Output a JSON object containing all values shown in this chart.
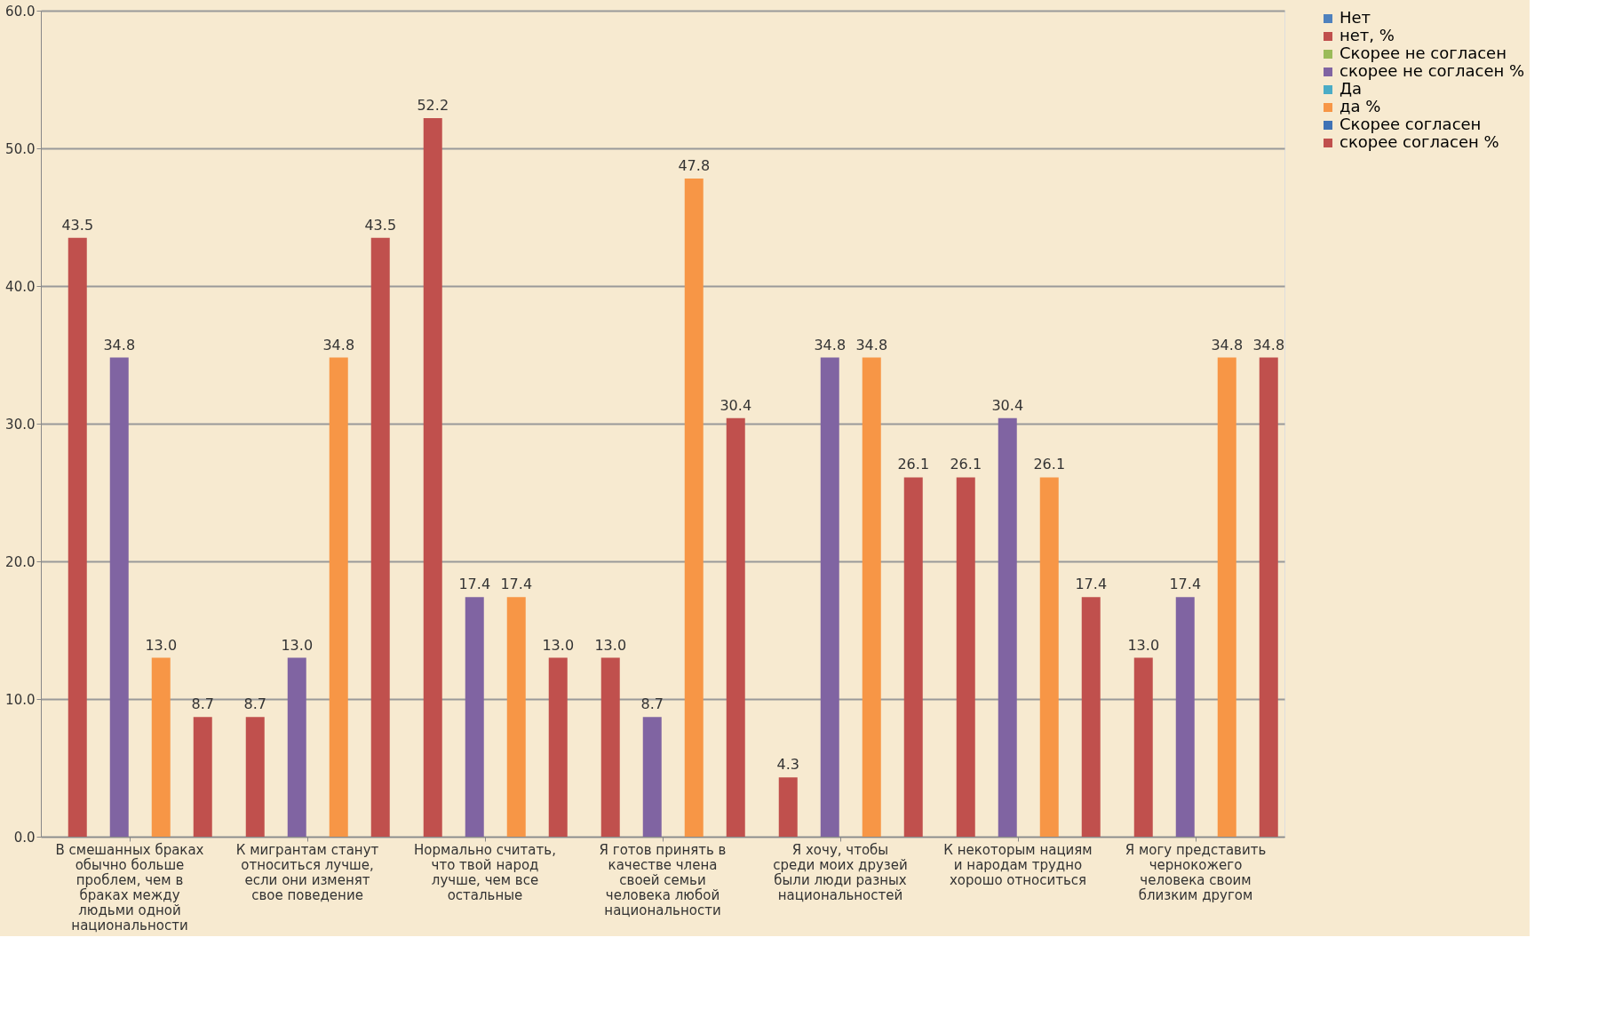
{
  "chart_data": {
    "type": "bar",
    "categories": [
      "В смешанных браках обычно больше проблем, чем в браках между людьми одной национальности",
      "К мигрантам станут относиться лучше, если они изменят свое поведение",
      "Нормально считать, что твой народ лучше, чем все остальные",
      "Я готов принять в качестве члена своей семьи человека любой национальности",
      "Я хочу, чтобы среди моих друзей были люди разных национальностей",
      "К некоторым нациям и народам трудно хорошо относиться",
      "Я могу представить чернокожего человека своим близким другом"
    ],
    "series": [
      {
        "name": "Нет",
        "color": "#4f81bd",
        "values": [
          null,
          null,
          null,
          null,
          null,
          null,
          null
        ]
      },
      {
        "name": "нет, %",
        "color": "#c0504d",
        "values": [
          43.5,
          8.7,
          52.2,
          13.0,
          4.3,
          26.1,
          13.0
        ],
        "value_labels": [
          "43.5",
          "8.7",
          "52.2",
          "13.0",
          "4.3",
          "26.1",
          "13.0"
        ]
      },
      {
        "name": "Скорее не согласен",
        "color": "#9bbb59",
        "values": [
          null,
          null,
          null,
          null,
          null,
          null,
          null
        ]
      },
      {
        "name": "скорее не согласен %",
        "color": "#8064a2",
        "values": [
          34.8,
          13.0,
          17.4,
          8.7,
          34.8,
          30.4,
          17.4
        ],
        "value_labels": [
          "34.8",
          "13.0",
          "17.4",
          "8.7",
          "34.8",
          "30.4",
          "17.4"
        ]
      },
      {
        "name": "Да",
        "color": "#4bacc6",
        "values": [
          null,
          null,
          null,
          null,
          null,
          null,
          null
        ]
      },
      {
        "name": "да %",
        "color": "#f79646",
        "values": [
          13.0,
          34.8,
          17.4,
          47.8,
          34.8,
          26.1,
          34.8
        ],
        "value_labels": [
          "13.0",
          "34.8",
          "17.4",
          "47.8",
          "34.8",
          "26.1",
          "34.8"
        ]
      },
      {
        "name": "Скорее согласен",
        "color": "#3f72b5",
        "values": [
          null,
          null,
          null,
          null,
          null,
          null,
          null
        ]
      },
      {
        "name": "скорее согласен %",
        "color": "#c0504d",
        "values": [
          8.7,
          43.5,
          13.0,
          30.4,
          26.1,
          17.4,
          34.8
        ],
        "value_labels": [
          "8.7",
          "43.5",
          "13.0",
          "30.4",
          "26.1",
          "17.4",
          "34.8"
        ]
      }
    ],
    "ylim": [
      0,
      60
    ],
    "yticks": [
      {
        "value": 0,
        "label": "0.0"
      },
      {
        "value": 10,
        "label": "10.0"
      },
      {
        "value": 20,
        "label": "20.0"
      },
      {
        "value": 30,
        "label": "30.0"
      },
      {
        "value": 40,
        "label": "40.0"
      },
      {
        "value": 50,
        "label": "50.0"
      },
      {
        "value": 60,
        "label": "60.0"
      }
    ],
    "grid": "y",
    "legend": "right"
  }
}
